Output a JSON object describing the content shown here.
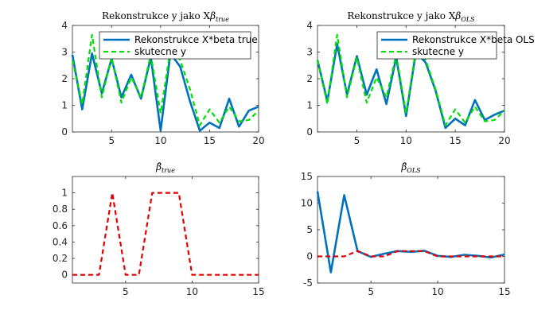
{
  "colors": {
    "blue": "#0072BD",
    "green": "#00E000",
    "red": "#E00000",
    "axis": "#262626"
  },
  "chart_data": [
    {
      "type": "line",
      "title": {
        "prefix": "Rekonstrukce y jako X",
        "symbol": "β",
        "sub": "true"
      },
      "xlim": [
        1,
        20
      ],
      "ylim": [
        0,
        4
      ],
      "xticks": [
        5,
        10,
        15,
        20
      ],
      "yticks": [
        0,
        1,
        2,
        3,
        4
      ],
      "grid": false,
      "legend": "top-right",
      "x": [
        1,
        2,
        3,
        4,
        5,
        6,
        7,
        8,
        9,
        10,
        11,
        12,
        13,
        14,
        15,
        16,
        17,
        18,
        19,
        20
      ],
      "series": [
        {
          "name": "Rekonstrukce X*beta true",
          "color": "blue",
          "style": "solid",
          "values": [
            2.9,
            0.85,
            2.95,
            1.45,
            2.75,
            1.3,
            2.15,
            1.25,
            2.8,
            0.05,
            2.95,
            2.45,
            1.15,
            0.05,
            0.35,
            0.15,
            1.25,
            0.2,
            0.8,
            0.95
          ]
        },
        {
          "name": "skutecne y",
          "color": "green",
          "style": "dashed",
          "values": [
            2.7,
            1.05,
            3.65,
            1.3,
            2.8,
            1.1,
            2.05,
            1.3,
            2.9,
            0.7,
            3.1,
            2.7,
            1.6,
            0.25,
            0.85,
            0.35,
            0.95,
            0.4,
            0.45,
            0.8
          ]
        }
      ]
    },
    {
      "type": "line",
      "title": {
        "prefix": "Rekonstrukce y jako X",
        "symbol": "β",
        "sub": "OLS"
      },
      "xlim": [
        1,
        20
      ],
      "ylim": [
        0,
        4
      ],
      "xticks": [
        5,
        10,
        15,
        20
      ],
      "yticks": [
        0,
        1,
        2,
        3,
        4
      ],
      "grid": false,
      "legend": "top-right",
      "x": [
        1,
        2,
        3,
        4,
        5,
        6,
        7,
        8,
        9,
        10,
        11,
        12,
        13,
        14,
        15,
        16,
        17,
        18,
        19,
        20
      ],
      "series": [
        {
          "name": "Rekonstrukce X*beta OLS",
          "color": "blue",
          "style": "solid",
          "values": [
            2.7,
            1.15,
            3.3,
            1.4,
            2.85,
            1.4,
            2.35,
            1.05,
            2.8,
            0.6,
            3.0,
            2.6,
            1.55,
            0.15,
            0.5,
            0.25,
            1.2,
            0.45,
            0.65,
            0.8
          ]
        },
        {
          "name": "skutecne y",
          "color": "green",
          "style": "dashed",
          "values": [
            2.7,
            1.05,
            3.65,
            1.3,
            2.8,
            1.1,
            2.05,
            1.3,
            2.9,
            0.7,
            3.1,
            2.7,
            1.6,
            0.25,
            0.85,
            0.35,
            0.95,
            0.4,
            0.45,
            0.8
          ]
        }
      ]
    },
    {
      "type": "line",
      "title": {
        "prefix": "",
        "symbol": "β̂",
        "sub": "true"
      },
      "xlim": [
        1,
        15
      ],
      "ylim": [
        -0.1,
        1.2
      ],
      "xticks": [
        5,
        10,
        15
      ],
      "yticks": [
        0,
        0.2,
        0.4,
        0.6,
        0.8,
        1
      ],
      "grid": false,
      "x": [
        1,
        2,
        3,
        4,
        5,
        6,
        7,
        8,
        9,
        10,
        11,
        12,
        13,
        14,
        15
      ],
      "series": [
        {
          "color": "red",
          "style": "dashed",
          "values": [
            0,
            0,
            0,
            1,
            0,
            0,
            1,
            1,
            1,
            0,
            0,
            0,
            0,
            0,
            0
          ]
        }
      ]
    },
    {
      "type": "line",
      "title": {
        "prefix": "",
        "symbol": "β̂",
        "sub": "OLS"
      },
      "xlim": [
        1,
        15
      ],
      "ylim": [
        -5,
        15
      ],
      "xticks": [
        5,
        10,
        15
      ],
      "yticks": [
        -5,
        0,
        5,
        10,
        15
      ],
      "grid": false,
      "x": [
        1,
        2,
        3,
        4,
        5,
        6,
        7,
        8,
        9,
        10,
        11,
        12,
        13,
        14,
        15
      ],
      "series": [
        {
          "color": "blue",
          "style": "solid",
          "values": [
            12.2,
            -3.0,
            11.5,
            1.0,
            -0.1,
            0.5,
            1.0,
            0.85,
            1.05,
            0.1,
            -0.1,
            0.3,
            0.1,
            -0.2,
            0.35
          ]
        },
        {
          "color": "red",
          "style": "dashed",
          "values": [
            0,
            0,
            0,
            1,
            0,
            0,
            1,
            1,
            1,
            0,
            0,
            0,
            0,
            0,
            0
          ]
        }
      ]
    }
  ]
}
